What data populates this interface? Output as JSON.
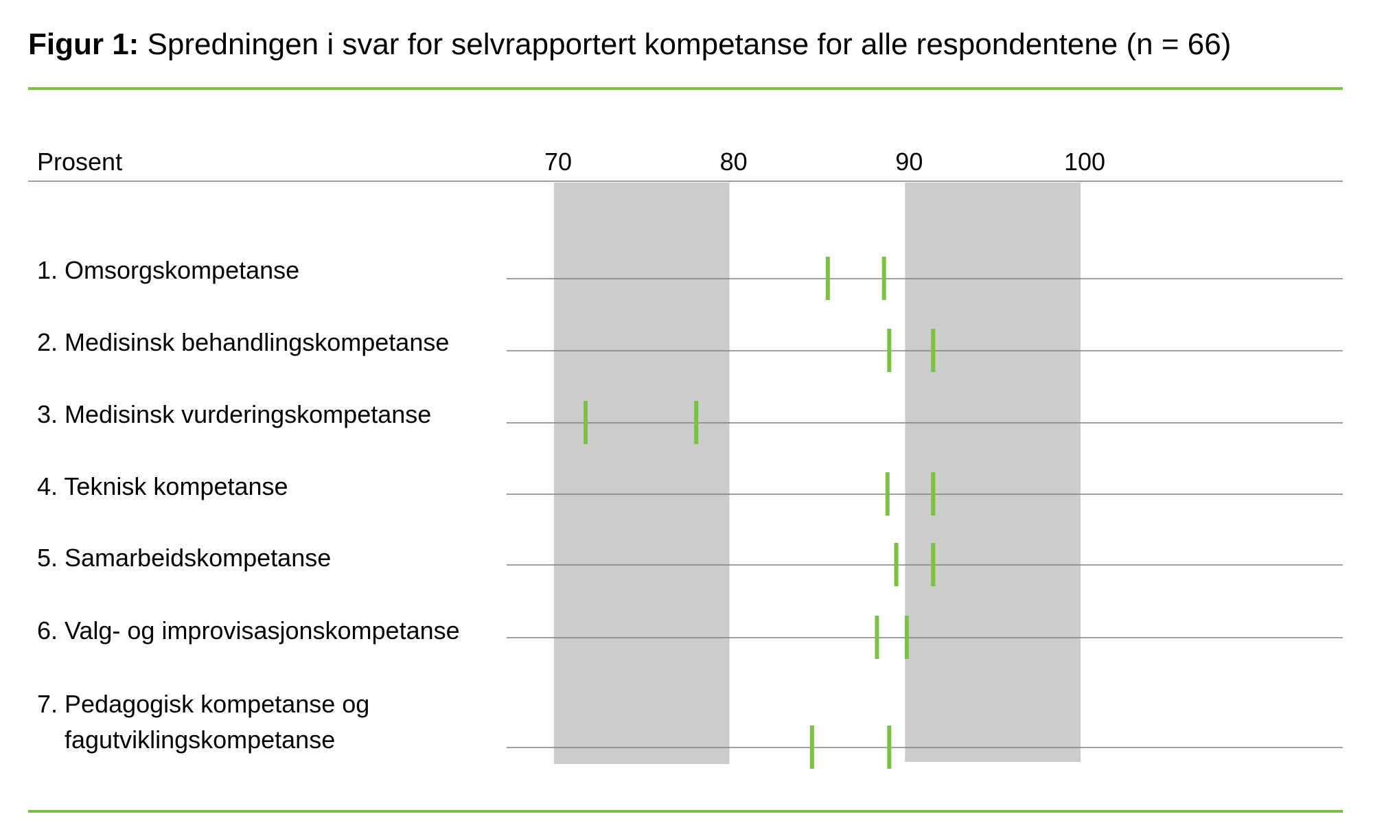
{
  "title": {
    "prefix": "Figur 1:",
    "text": " Spredningen i svar for selvrapportert kompetanse for alle respondentene (n = 66)"
  },
  "colors": {
    "accent": "#7dc142",
    "band": "#cccccc",
    "rule": "#808080"
  },
  "chart_data": {
    "type": "range-markers",
    "ylabel": "Prosent",
    "xlim": [
      70,
      100
    ],
    "xticks": [
      70,
      80,
      90,
      100
    ],
    "shaded_bands": [
      [
        70,
        80
      ],
      [
        90,
        100
      ]
    ],
    "categories": [
      "1. Omsorgskompetanse",
      "2. Medisinsk behandlingskompetanse",
      "3. Medisinsk vurderingskompetanse",
      "4. Teknisk kompetanse",
      "5. Samarbeidskompetanse",
      "6. Valg- og improvisasjonskompetanse",
      "7. Pedagogisk kompetanse og\nfagutviklingskompetanse"
    ],
    "ranges": [
      [
        85.6,
        88.8
      ],
      [
        89.1,
        91.6
      ],
      [
        71.8,
        78.1
      ],
      [
        89.0,
        91.6
      ],
      [
        89.5,
        91.6
      ],
      [
        88.4,
        90.1
      ],
      [
        84.7,
        89.1
      ]
    ]
  }
}
